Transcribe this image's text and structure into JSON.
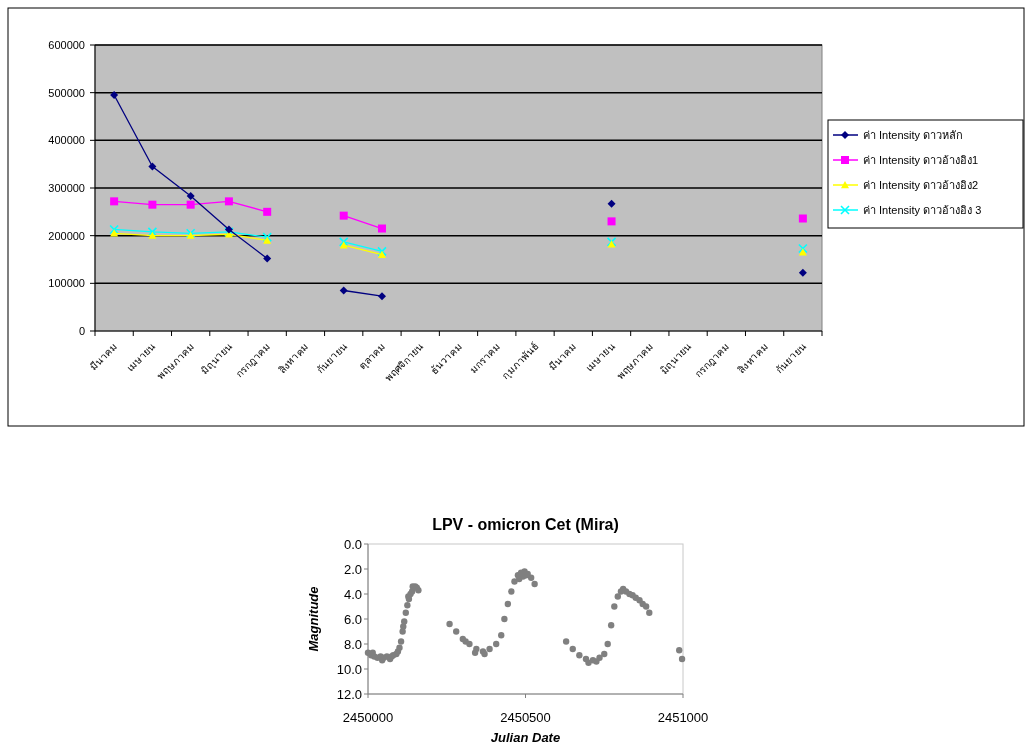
{
  "chart_data": [
    {
      "type": "line",
      "categories": [
        "มีนาคม",
        "เมษายน",
        "พฤษภาคม",
        "มิถุนายน",
        "กรกฎาคม",
        "สิงหาคม",
        "กันยายน",
        "ตุลาคม",
        "พฤศจิกายน",
        "ธันวาคม",
        "มกราคม",
        "กุมภาพันธ์",
        "มีนาคม",
        "เมษายน",
        "พฤษภาคม",
        "มิถุนายน",
        "กรกฎาคม",
        "สิงหาคม",
        "กันยายน"
      ],
      "series": [
        {
          "name": "ค่า Intensity ดาวหลัก",
          "color": "#000080",
          "marker": "diamond",
          "values": [
            495000,
            345000,
            283000,
            213000,
            152000,
            null,
            85000,
            73000,
            null,
            null,
            null,
            null,
            null,
            267000,
            null,
            null,
            null,
            null,
            122000
          ]
        },
        {
          "name": "ค่า Intensity ดาวอ้างอิง1",
          "color": "#ff00ff",
          "marker": "square",
          "values": [
            272000,
            265000,
            265000,
            272000,
            250000,
            null,
            242000,
            215000,
            null,
            null,
            null,
            null,
            null,
            230000,
            null,
            null,
            null,
            null,
            236000
          ]
        },
        {
          "name": "ค่า Intensity ดาวอ้างอิง2",
          "color": "#ffff00",
          "marker": "triangle",
          "values": [
            205000,
            200000,
            200000,
            203000,
            190000,
            null,
            180000,
            160000,
            null,
            null,
            null,
            null,
            null,
            182000,
            null,
            null,
            null,
            null,
            165000
          ]
        },
        {
          "name": "ค่า Intensity ดาวอ้างอิง 3",
          "color": "#00ffff",
          "marker": "cross",
          "values": [
            213000,
            208000,
            205000,
            208000,
            197000,
            null,
            187000,
            167000,
            null,
            null,
            null,
            null,
            null,
            187000,
            null,
            null,
            null,
            null,
            173000
          ]
        }
      ],
      "ylim": [
        0,
        600000
      ],
      "yticks": [
        0,
        100000,
        200000,
        300000,
        400000,
        500000,
        600000
      ],
      "grid": "y",
      "legend": "right"
    },
    {
      "type": "scatter",
      "title": "LPV - omicron Cet (Mira)",
      "xlabel": "Julian Date",
      "ylabel": "Magnitude",
      "color": "#808080",
      "marker": "circle",
      "x": [
        2450000,
        2450010,
        2450020,
        2450030,
        2450040,
        2450050,
        2450060,
        2450070,
        2450080,
        2450090,
        2450095,
        2450100,
        2450105,
        2450110,
        2450115,
        2450120,
        2450125,
        2450130,
        2450135,
        2450140,
        2450150,
        2450155,
        2450160,
        2450015,
        2450045,
        2450075,
        2450112,
        2450128,
        2450142,
        2450259,
        2450280,
        2450301,
        2450322,
        2450344,
        2450365,
        2450386,
        2450407,
        2450423,
        2450433,
        2450444,
        2450455,
        2450465,
        2450476,
        2450486,
        2450497,
        2450507,
        2450518,
        2450529,
        2450310,
        2450340,
        2450370,
        2450480,
        2450492,
        2450502,
        2450629,
        2450650,
        2450671,
        2450692,
        2450714,
        2450735,
        2450750,
        2450761,
        2450772,
        2450782,
        2450793,
        2450803,
        2450819,
        2450840,
        2450862,
        2450883,
        2450893,
        2450700,
        2450725,
        2450810,
        2450830,
        2450850,
        2450872,
        2450988,
        2450997
      ],
      "values": [
        8.7,
        8.9,
        9.0,
        9.1,
        9.0,
        9.1,
        9.0,
        9.2,
        8.9,
        8.8,
        8.6,
        8.3,
        7.8,
        7.0,
        6.2,
        5.5,
        4.9,
        4.4,
        4.0,
        3.8,
        3.4,
        3.5,
        3.7,
        8.7,
        9.3,
        9.0,
        6.6,
        4.2,
        3.4,
        6.4,
        7.0,
        7.6,
        8.0,
        8.4,
        8.6,
        8.4,
        8.0,
        7.3,
        6.0,
        4.8,
        3.8,
        3.0,
        2.5,
        2.3,
        2.2,
        2.4,
        2.7,
        3.2,
        7.8,
        8.7,
        8.8,
        2.8,
        2.6,
        2.5,
        7.8,
        8.4,
        8.9,
        9.2,
        9.3,
        9.1,
        8.8,
        8.0,
        6.5,
        5.0,
        4.2,
        3.8,
        3.8,
        4.1,
        4.5,
        5.0,
        5.5,
        9.5,
        9.4,
        3.6,
        4.0,
        4.3,
        4.8,
        8.5,
        9.2
      ],
      "xlim": [
        2450000,
        2451000
      ],
      "xticks": [
        2450000,
        2450500,
        2451000
      ],
      "ylim": [
        12,
        0
      ],
      "yticks": [
        {
          "value": 0,
          "label": "0.0"
        },
        {
          "value": 2,
          "label": "2.0"
        },
        {
          "value": 4,
          "label": "4.0"
        },
        {
          "value": 6,
          "label": "6.0"
        },
        {
          "value": 8,
          "label": "8.0"
        },
        {
          "value": 10,
          "label": "10.0"
        },
        {
          "value": 12,
          "label": "12.0"
        }
      ],
      "grid": false
    }
  ]
}
